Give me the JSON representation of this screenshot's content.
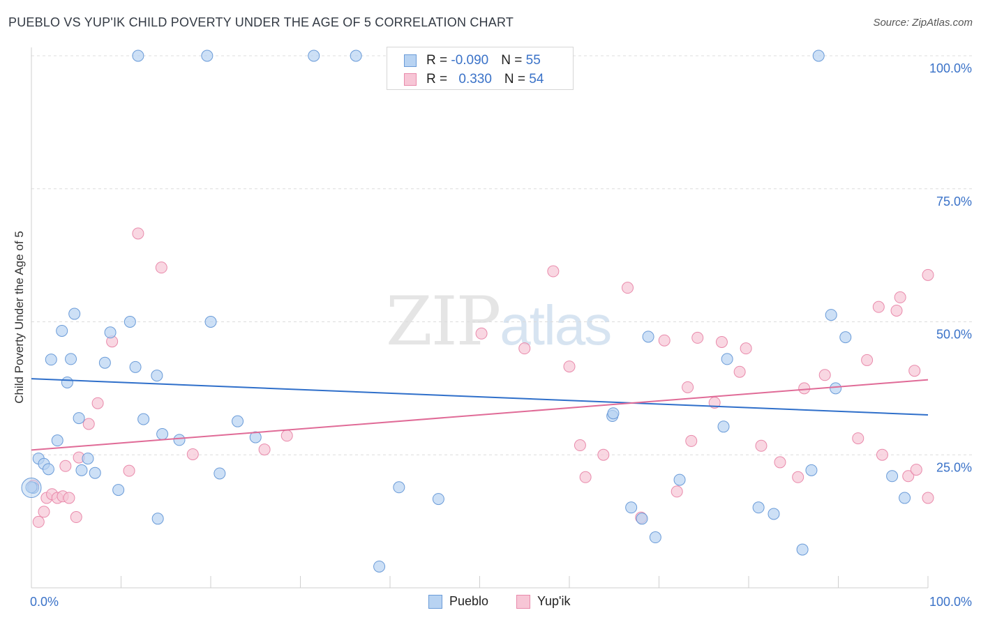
{
  "header": {
    "title": "PUEBLO VS YUP'IK CHILD POVERTY UNDER THE AGE OF 5 CORRELATION CHART",
    "source": "Source: ZipAtlas.com"
  },
  "watermark": {
    "zip": "ZIP",
    "atlas": "atlas"
  },
  "legend": {
    "rows": [
      {
        "r_label": "R = ",
        "r_value": "-0.090",
        "n_label": "N = ",
        "n_value": "55"
      },
      {
        "r_label": "R = ",
        "r_value": "0.330",
        "n_label": "N = ",
        "n_value": "54"
      }
    ]
  },
  "bottom_legend": {
    "pueblo": "Pueblo",
    "yupik": "Yup'ik"
  },
  "colors": {
    "pueblo_fill": "#b8d3f2",
    "pueblo_stroke": "#6a9bd8",
    "pueblo_line": "#2f6fca",
    "yupik_fill": "#f7c6d6",
    "yupik_stroke": "#e98aab",
    "yupik_line": "#e06b97",
    "tick_label": "#3a72c8",
    "grid": "#dcdcdc"
  },
  "chart_data": {
    "type": "scatter",
    "title": "PUEBLO VS YUP'IK CHILD POVERTY UNDER THE AGE OF 5 CORRELATION CHART",
    "xlabel": "",
    "ylabel": "Child Poverty Under the Age of 5",
    "xlim": [
      0,
      100
    ],
    "ylim": [
      0,
      105
    ],
    "x_tick_labels": [
      "0.0%",
      "100.0%"
    ],
    "y_ticks": [
      25,
      50,
      75,
      100
    ],
    "y_tick_labels": [
      "25.0%",
      "50.0%",
      "75.0%",
      "100.0%"
    ],
    "grid": true,
    "series": [
      {
        "name": "Pueblo",
        "r": -0.09,
        "n": 55,
        "trend": {
          "x": [
            0,
            100
          ],
          "y": [
            39.3,
            32.5
          ]
        },
        "points": [
          {
            "x": 0.2,
            "y": 18.8
          },
          {
            "x": 0.8,
            "y": 24.3
          },
          {
            "x": 1.4,
            "y": 23.3
          },
          {
            "x": 1.9,
            "y": 22.3
          },
          {
            "x": 2.2,
            "y": 42.9
          },
          {
            "x": 2.9,
            "y": 27.7
          },
          {
            "x": 3.4,
            "y": 48.3
          },
          {
            "x": 4.0,
            "y": 38.6
          },
          {
            "x": 4.4,
            "y": 43.0
          },
          {
            "x": 4.8,
            "y": 51.5
          },
          {
            "x": 5.3,
            "y": 31.9
          },
          {
            "x": 5.6,
            "y": 22.1
          },
          {
            "x": 6.3,
            "y": 24.3
          },
          {
            "x": 7.1,
            "y": 21.6
          },
          {
            "x": 8.2,
            "y": 42.3
          },
          {
            "x": 8.8,
            "y": 48.0
          },
          {
            "x": 9.7,
            "y": 18.4
          },
          {
            "x": 11.0,
            "y": 50.0
          },
          {
            "x": 11.6,
            "y": 41.5
          },
          {
            "x": 11.9,
            "y": 100.0
          },
          {
            "x": 12.5,
            "y": 31.7
          },
          {
            "x": 14.0,
            "y": 39.9
          },
          {
            "x": 14.1,
            "y": 13.0
          },
          {
            "x": 14.6,
            "y": 28.9
          },
          {
            "x": 16.5,
            "y": 27.8
          },
          {
            "x": 19.6,
            "y": 100.0
          },
          {
            "x": 20.0,
            "y": 50.0
          },
          {
            "x": 21.0,
            "y": 21.5
          },
          {
            "x": 23.0,
            "y": 31.3
          },
          {
            "x": 25.0,
            "y": 28.3
          },
          {
            "x": 31.5,
            "y": 100.0
          },
          {
            "x": 36.2,
            "y": 100.0
          },
          {
            "x": 38.8,
            "y": 4.0
          },
          {
            "x": 41.0,
            "y": 18.9
          },
          {
            "x": 45.4,
            "y": 16.7
          },
          {
            "x": 64.8,
            "y": 32.3
          },
          {
            "x": 64.9,
            "y": 32.8
          },
          {
            "x": 66.9,
            "y": 15.1
          },
          {
            "x": 68.1,
            "y": 13.0
          },
          {
            "x": 68.8,
            "y": 47.2
          },
          {
            "x": 69.6,
            "y": 9.5
          },
          {
            "x": 72.3,
            "y": 20.3
          },
          {
            "x": 77.2,
            "y": 30.3
          },
          {
            "x": 77.6,
            "y": 43.0
          },
          {
            "x": 81.1,
            "y": 15.1
          },
          {
            "x": 82.8,
            "y": 13.9
          },
          {
            "x": 86.0,
            "y": 7.2
          },
          {
            "x": 87.0,
            "y": 22.1
          },
          {
            "x": 87.8,
            "y": 100.0
          },
          {
            "x": 89.2,
            "y": 51.3
          },
          {
            "x": 89.7,
            "y": 37.5
          },
          {
            "x": 90.8,
            "y": 47.1
          },
          {
            "x": 96.0,
            "y": 21.0
          },
          {
            "x": 97.4,
            "y": 16.9
          },
          {
            "x": 0.0,
            "y": 18.9
          }
        ]
      },
      {
        "name": "Yup'ik",
        "r": 0.33,
        "n": 54,
        "trend": {
          "x": [
            0,
            100
          ],
          "y": [
            25.9,
            39.1
          ]
        },
        "points": [
          {
            "x": 0.2,
            "y": 19.2
          },
          {
            "x": 0.8,
            "y": 12.4
          },
          {
            "x": 1.4,
            "y": 14.3
          },
          {
            "x": 1.7,
            "y": 16.9
          },
          {
            "x": 2.3,
            "y": 17.6
          },
          {
            "x": 2.9,
            "y": 16.9
          },
          {
            "x": 3.5,
            "y": 17.2
          },
          {
            "x": 3.8,
            "y": 22.9
          },
          {
            "x": 4.2,
            "y": 16.9
          },
          {
            "x": 5.0,
            "y": 13.3
          },
          {
            "x": 5.3,
            "y": 24.5
          },
          {
            "x": 6.4,
            "y": 30.8
          },
          {
            "x": 7.4,
            "y": 34.7
          },
          {
            "x": 9.0,
            "y": 46.3
          },
          {
            "x": 10.9,
            "y": 22.0
          },
          {
            "x": 11.9,
            "y": 66.6
          },
          {
            "x": 14.5,
            "y": 60.2
          },
          {
            "x": 18.0,
            "y": 25.1
          },
          {
            "x": 26.0,
            "y": 26.0
          },
          {
            "x": 28.5,
            "y": 28.6
          },
          {
            "x": 50.2,
            "y": 47.8
          },
          {
            "x": 55.0,
            "y": 45.0
          },
          {
            "x": 58.2,
            "y": 59.5
          },
          {
            "x": 60.0,
            "y": 41.6
          },
          {
            "x": 61.2,
            "y": 26.8
          },
          {
            "x": 61.8,
            "y": 20.8
          },
          {
            "x": 63.8,
            "y": 25.0
          },
          {
            "x": 66.5,
            "y": 56.4
          },
          {
            "x": 68.0,
            "y": 13.2
          },
          {
            "x": 70.6,
            "y": 46.5
          },
          {
            "x": 72.0,
            "y": 18.1
          },
          {
            "x": 73.2,
            "y": 37.7
          },
          {
            "x": 73.6,
            "y": 27.6
          },
          {
            "x": 74.3,
            "y": 47.0
          },
          {
            "x": 76.2,
            "y": 34.8
          },
          {
            "x": 77.0,
            "y": 46.2
          },
          {
            "x": 79.0,
            "y": 40.6
          },
          {
            "x": 79.7,
            "y": 45.0
          },
          {
            "x": 81.4,
            "y": 26.7
          },
          {
            "x": 83.5,
            "y": 23.6
          },
          {
            "x": 85.5,
            "y": 20.8
          },
          {
            "x": 86.2,
            "y": 37.5
          },
          {
            "x": 88.5,
            "y": 40.0
          },
          {
            "x": 92.2,
            "y": 28.1
          },
          {
            "x": 93.2,
            "y": 42.8
          },
          {
            "x": 94.5,
            "y": 52.8
          },
          {
            "x": 94.9,
            "y": 25.0
          },
          {
            "x": 96.5,
            "y": 52.1
          },
          {
            "x": 96.9,
            "y": 54.6
          },
          {
            "x": 97.8,
            "y": 21.0
          },
          {
            "x": 98.5,
            "y": 40.8
          },
          {
            "x": 98.7,
            "y": 22.2
          },
          {
            "x": 100.0,
            "y": 58.8
          },
          {
            "x": 100.0,
            "y": 16.9
          }
        ]
      }
    ]
  }
}
